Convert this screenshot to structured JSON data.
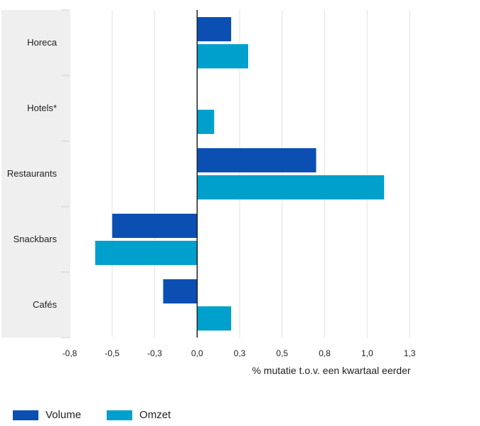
{
  "chart_data": {
    "type": "bar",
    "orientation": "horizontal",
    "categories": [
      "Horeca",
      "Hotels*",
      "Restaurants",
      "Snackbars",
      "Cafés"
    ],
    "series": [
      {
        "name": "Volume",
        "color": "#0b4fb3",
        "values": [
          0.2,
          null,
          0.7,
          -0.5,
          -0.2
        ]
      },
      {
        "name": "Omzet",
        "color": "#00a0cc",
        "values": [
          0.3,
          0.1,
          1.1,
          -0.6,
          0.2
        ]
      }
    ],
    "xlim": [
      -0.75,
      1.3
    ],
    "x_ticks": [
      -0.75,
      -0.5,
      -0.25,
      0,
      0.25,
      0.5,
      0.75,
      1.0,
      1.25
    ],
    "x_tick_labels": [
      "-0,8",
      "-0,5",
      "-0,3",
      "0,0",
      "0,3",
      "0,5",
      "0,8",
      "1,0",
      "1,3"
    ],
    "xlabel": "% mutatie t.o.v. een kwartaal eerder",
    "ylabel": "",
    "title": "",
    "grid": "vertical",
    "legend_position": "bottom-left"
  }
}
